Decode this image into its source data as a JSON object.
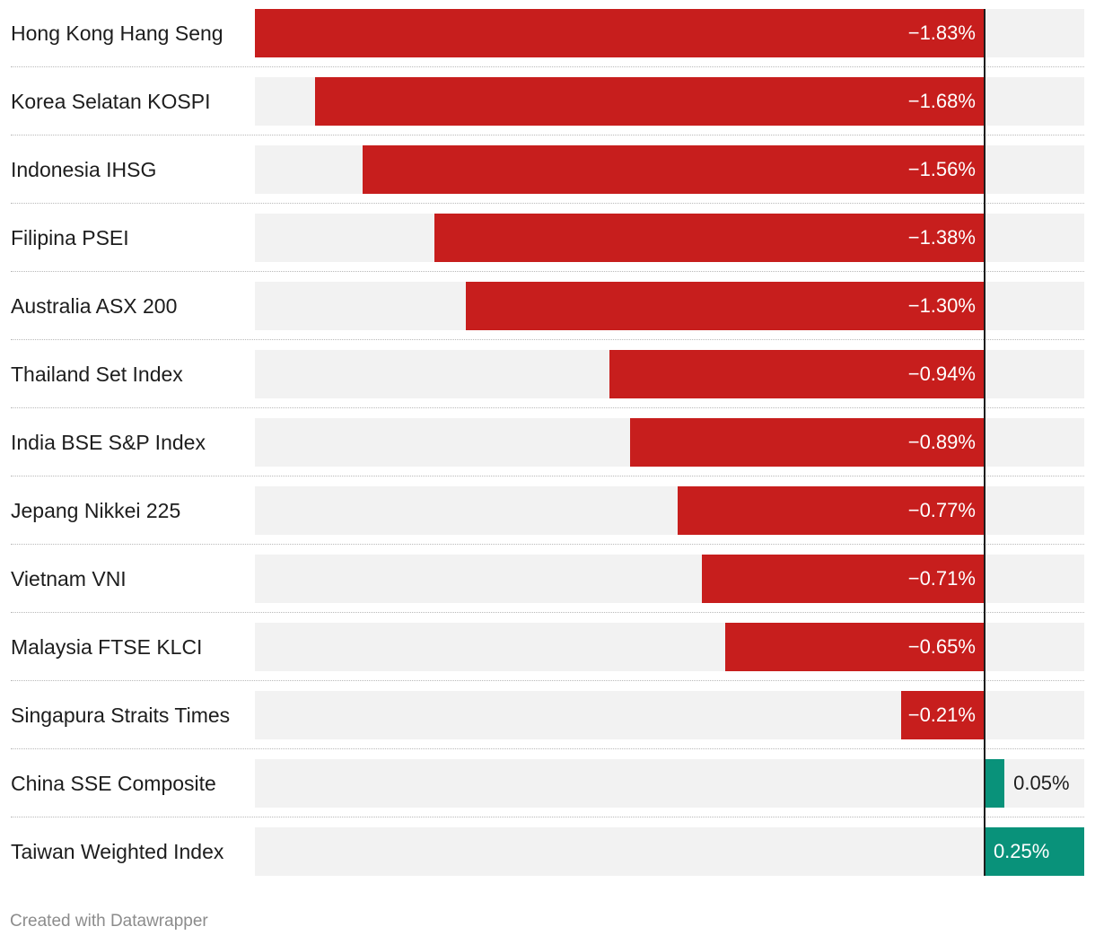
{
  "chart_data": {
    "type": "bar",
    "orientation": "horizontal",
    "categories": [
      "Hong Kong Hang Seng",
      "Korea Selatan KOSPI",
      "Indonesia IHSG",
      "Filipina PSEI",
      "Australia ASX 200",
      "Thailand Set Index",
      "India BSE S&P Index",
      "Jepang Nikkei 225",
      "Vietnam VNI",
      "Malaysia FTSE KLCI",
      "Singapura Straits Times",
      "China SSE Composite",
      "Taiwan Weighted Index"
    ],
    "values": [
      -1.83,
      -1.68,
      -1.56,
      -1.38,
      -1.3,
      -0.94,
      -0.89,
      -0.77,
      -0.71,
      -0.65,
      -0.21,
      0.05,
      0.25
    ],
    "value_labels": [
      "−1.83%",
      "−1.68%",
      "−1.56%",
      "−1.38%",
      "−1.30%",
      "−0.94%",
      "−0.89%",
      "−0.77%",
      "−0.71%",
      "−0.65%",
      "−0.21%",
      "0.05%",
      "0.25%"
    ],
    "xlim": [
      -1.83,
      0.25
    ],
    "title": "",
    "xlabel": "",
    "ylabel": "",
    "grid": false,
    "legend": "none"
  },
  "colors": {
    "negative": "#c71e1d",
    "positive": "#09927a",
    "track": "#f2f2f2",
    "zero_line": "#1d1d1d"
  },
  "footer": {
    "credit": "Created with Datawrapper"
  }
}
